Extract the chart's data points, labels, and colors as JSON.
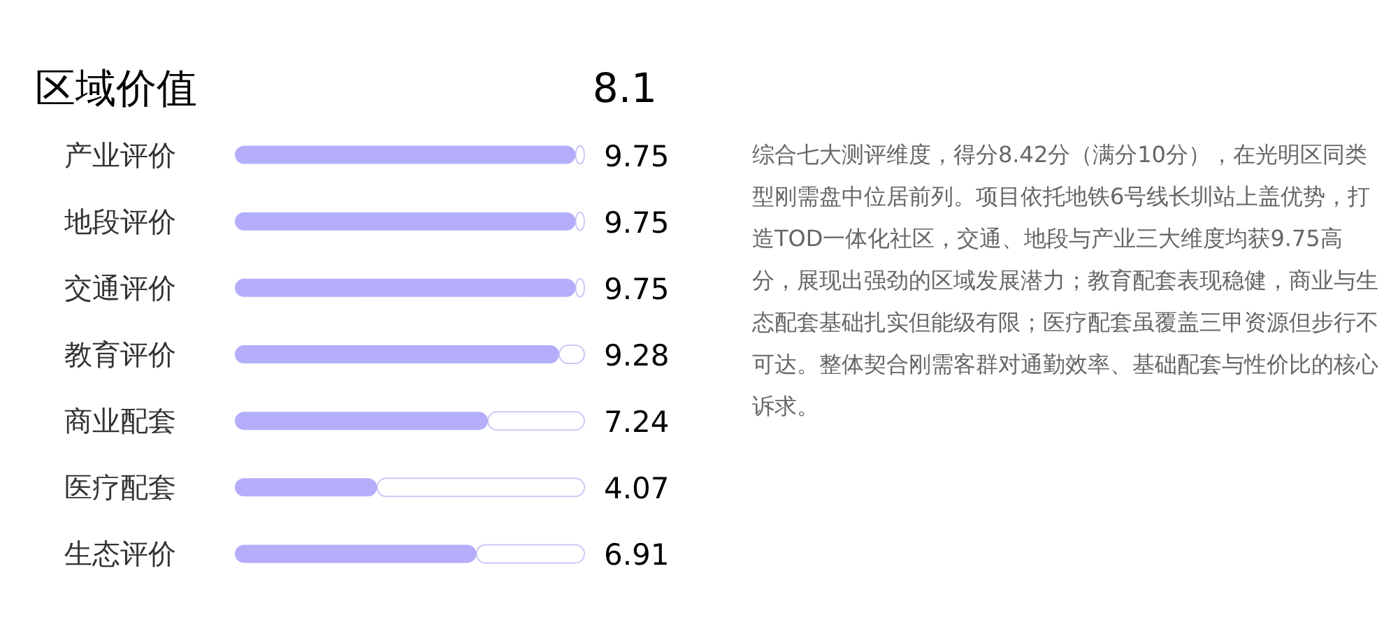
{
  "chart_data": {
    "type": "bar",
    "orientation": "horizontal",
    "title": "区域价值",
    "categories": [
      "产业评价",
      "地段评价",
      "交通评价",
      "教育评价",
      "商业配套",
      "医疗配套",
      "生态评价"
    ],
    "stacked": true,
    "series": [
      {
        "color": "#b4aefa",
        "values": [
          9.75,
          9.75,
          9.75,
          9.28,
          7.24,
          4.07,
          6.91
        ],
        "value_labels": [
          "9.75",
          "9.75",
          "9.75",
          "9.28",
          "7.24",
          "4.07",
          "6.91"
        ]
      },
      {
        "color": "#cdc8f7",
        "values": [
          0.25,
          0.25,
          0.25,
          0.72,
          2.76,
          5.93,
          3.09
        ]
      }
    ],
    "xlim": [
      0,
      10
    ],
    "tick_labels": "y",
    "annotations": [
      "8.1",
      "综合七大测评维度，得分8.42分（满分10分），在光明区同类型刚需盘中位居前列。项目依托地铁6号线长圳站上盖优势，打造TOD一体化社区，交通、地段与产业三大维度均获9.75高分，展现出强劲的区域发展潜力；教育配套表现稳健，商业与生态配套基础扎实但能级有限；医疗配套虽覆盖三甲资源但步行不可达。整体契合刚需客群对通勤效率、基础配套与性价比的核心诉求。"
    ]
  }
}
